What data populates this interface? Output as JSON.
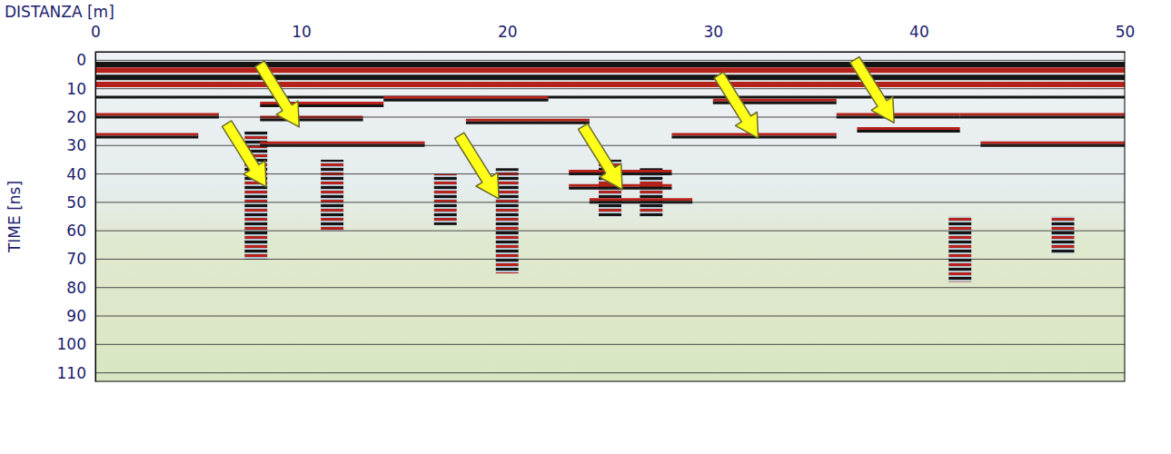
{
  "chart_data": {
    "type": "radargram",
    "x_label": "DISTANZA [m]",
    "y_label": "TIME [ns]",
    "xlim": [
      0,
      50
    ],
    "xticks": [
      0,
      10,
      20,
      30,
      40,
      50
    ],
    "ylim": [
      -3,
      113
    ],
    "yticks": [
      0,
      10,
      20,
      30,
      40,
      50,
      60,
      70,
      80,
      90,
      100,
      110
    ],
    "grid": true,
    "layers": [
      1.5,
      3.5,
      6,
      8.5,
      13
    ],
    "segments": [
      {
        "x0": 0,
        "x1": 6,
        "t": 20
      },
      {
        "x0": 0,
        "x1": 5,
        "t": 27
      },
      {
        "x0": 8,
        "x1": 14,
        "t": 16
      },
      {
        "x0": 8,
        "x1": 13,
        "t": 21
      },
      {
        "x0": 8,
        "x1": 16,
        "t": 30
      },
      {
        "x0": 14,
        "x1": 22,
        "t": 14
      },
      {
        "x0": 18,
        "x1": 24,
        "t": 22
      },
      {
        "x0": 23,
        "x1": 28,
        "t": 40
      },
      {
        "x0": 23,
        "x1": 28,
        "t": 45
      },
      {
        "x0": 24,
        "x1": 29,
        "t": 50
      },
      {
        "x0": 28,
        "x1": 36,
        "t": 27
      },
      {
        "x0": 30,
        "x1": 36,
        "t": 15
      },
      {
        "x0": 36,
        "x1": 42,
        "t": 20
      },
      {
        "x0": 37,
        "x1": 42,
        "t": 25
      },
      {
        "x0": 42,
        "x1": 50,
        "t": 20
      },
      {
        "x0": 43,
        "x1": 50,
        "t": 30
      }
    ],
    "anomalies": [
      {
        "x": 7.8,
        "t0": 25,
        "t1": 70
      },
      {
        "x": 11.5,
        "t0": 35,
        "t1": 60
      },
      {
        "x": 17,
        "t0": 40,
        "t1": 58
      },
      {
        "x": 20,
        "t0": 38,
        "t1": 75
      },
      {
        "x": 25,
        "t0": 35,
        "t1": 55
      },
      {
        "x": 27,
        "t0": 38,
        "t1": 55
      },
      {
        "x": 42,
        "t0": 55,
        "t1": 78
      },
      {
        "x": 47,
        "t0": 55,
        "t1": 68
      }
    ],
    "arrows": [
      {
        "x": 8.3,
        "t": 44.5
      },
      {
        "x": 9.9,
        "t": 23.5
      },
      {
        "x": 19.6,
        "t": 48.7
      },
      {
        "x": 25.6,
        "t": 45.5
      },
      {
        "x": 32.2,
        "t": 27.4
      },
      {
        "x": 38.8,
        "t": 22
      }
    ]
  }
}
